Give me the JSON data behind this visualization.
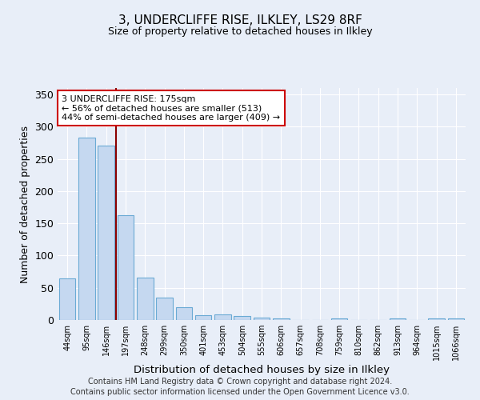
{
  "title": "3, UNDERCLIFFE RISE, ILKLEY, LS29 8RF",
  "subtitle": "Size of property relative to detached houses in Ilkley",
  "xlabel": "Distribution of detached houses by size in Ilkley",
  "ylabel": "Number of detached properties",
  "categories": [
    "44sqm",
    "95sqm",
    "146sqm",
    "197sqm",
    "248sqm",
    "299sqm",
    "350sqm",
    "401sqm",
    "453sqm",
    "504sqm",
    "555sqm",
    "606sqm",
    "657sqm",
    "708sqm",
    "759sqm",
    "810sqm",
    "862sqm",
    "913sqm",
    "964sqm",
    "1015sqm",
    "1066sqm"
  ],
  "values": [
    65,
    283,
    271,
    163,
    66,
    35,
    20,
    7,
    9,
    6,
    4,
    3,
    0,
    0,
    3,
    0,
    0,
    2,
    0,
    2,
    2
  ],
  "bar_color": "#c5d8f0",
  "bar_edge_color": "#6aaad4",
  "marker_color": "#8b0000",
  "annotation_line1": "3 UNDERCLIFFE RISE: 175sqm",
  "annotation_line2": "← 56% of detached houses are smaller (513)",
  "annotation_line3": "44% of semi-detached houses are larger (409) →",
  "annotation_box_color": "#ffffff",
  "annotation_box_edge_color": "#cc0000",
  "ylim": [
    0,
    360
  ],
  "yticks": [
    0,
    50,
    100,
    150,
    200,
    250,
    300,
    350
  ],
  "footer_line1": "Contains HM Land Registry data © Crown copyright and database right 2024.",
  "footer_line2": "Contains public sector information licensed under the Open Government Licence v3.0.",
  "bg_color": "#e8eef8",
  "plot_bg_color": "#e8eef8"
}
